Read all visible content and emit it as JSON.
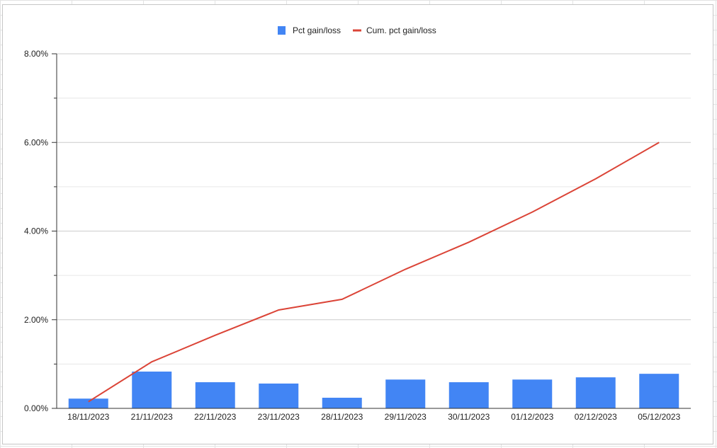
{
  "chart_data": {
    "type": "bar+line",
    "title": "",
    "xlabel": "",
    "ylabel": "",
    "categories": [
      "18/11/2023",
      "21/11/2023",
      "22/11/2023",
      "23/11/2023",
      "28/11/2023",
      "29/11/2023",
      "30/11/2023",
      "01/12/2023",
      "02/12/2023",
      "05/12/2023"
    ],
    "series": [
      {
        "name": "Pct gain/loss",
        "type": "bar",
        "color": "#4285f4",
        "values": [
          0.22,
          0.83,
          0.59,
          0.56,
          0.24,
          0.65,
          0.59,
          0.65,
          0.7,
          0.78
        ]
      },
      {
        "name": "Cum. pct gain/loss",
        "type": "line",
        "color": "#db4437",
        "values": [
          0.15,
          1.05,
          1.65,
          2.22,
          2.46,
          3.14,
          3.75,
          4.43,
          5.18,
          6.0
        ]
      }
    ],
    "ylim": [
      0,
      8
    ],
    "yticks": [
      "0.00%",
      "2.00%",
      "4.00%",
      "6.00%",
      "8.00%"
    ],
    "grid": true,
    "legend": "top"
  }
}
